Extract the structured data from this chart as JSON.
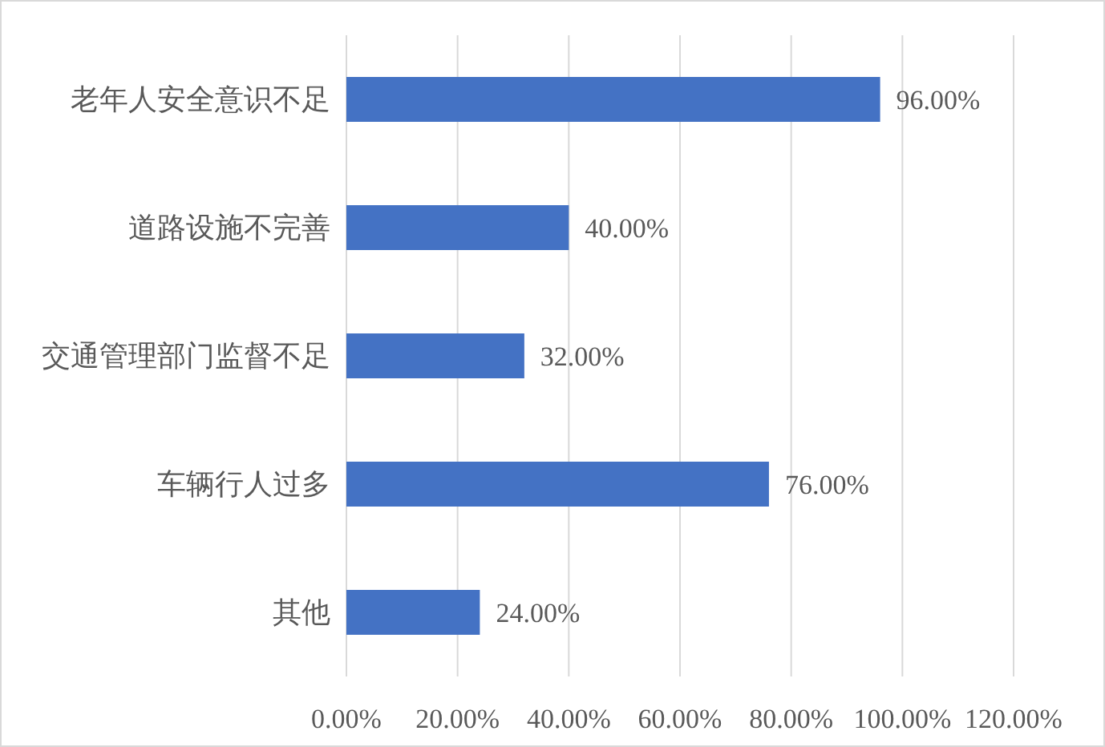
{
  "chart_data": {
    "type": "bar",
    "orientation": "horizontal",
    "categories": [
      "老年人安全意识不足",
      "道路设施不完善",
      "交通管理部门监督不足",
      "车辆行人过多",
      "其他"
    ],
    "values": [
      96,
      40,
      32,
      76,
      24
    ],
    "color": "#4472c4",
    "value_labels": [
      "96.00%",
      "40.00%",
      "32.00%",
      "76.00%",
      "24.00%"
    ],
    "xlim": [
      0,
      120
    ],
    "xticks": [
      {
        "value": 0,
        "label": "0.00%"
      },
      {
        "value": 20,
        "label": "20.00%"
      },
      {
        "value": 40,
        "label": "40.00%"
      },
      {
        "value": 60,
        "label": "60.00%"
      },
      {
        "value": 80,
        "label": "80.00%"
      },
      {
        "value": 100,
        "label": "100.00%"
      },
      {
        "value": 120,
        "label": "120.00%"
      }
    ],
    "grid": "x"
  }
}
